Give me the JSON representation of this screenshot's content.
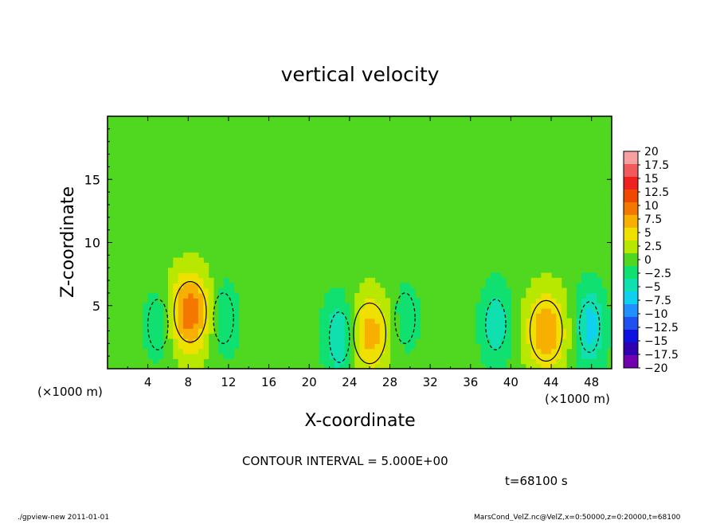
{
  "chart_data": {
    "type": "heatmap",
    "title": "vertical velocity",
    "xlabel": "X-coordinate",
    "ylabel": "Z-coordinate",
    "x_unit_left": "(×1000 m)",
    "x_unit_right": "(×1000 m)",
    "xlim": [
      0,
      50
    ],
    "ylim": [
      0,
      20
    ],
    "x_ticks": [
      "4",
      "8",
      "12",
      "16",
      "20",
      "24",
      "28",
      "32",
      "36",
      "40",
      "44",
      "48"
    ],
    "y_ticks": [
      "5",
      "10",
      "15"
    ],
    "contour_interval_label": "CONTOUR INTERVAL = 5.000E+00",
    "time_label": "t=68100 s",
    "colorbar": {
      "labels": [
        "20",
        "17.5",
        "15",
        "12.5",
        "10",
        "7.5",
        "5",
        "2.5",
        "0",
        "−2.5",
        "−5",
        "−7.5",
        "−10",
        "−12.5",
        "−15",
        "−17.5",
        "−20"
      ],
      "colors": [
        "#f7a0a0",
        "#f05a5a",
        "#ee2020",
        "#f04800",
        "#f47800",
        "#f8b000",
        "#f0e000",
        "#b8e800",
        "#50d820",
        "#10e070",
        "#10e0b0",
        "#10d0f0",
        "#2090ff",
        "#2050f0",
        "#1010e0",
        "#3000b0",
        "#7000b0"
      ]
    },
    "features": [
      {
        "x": 8.2,
        "z": 4.5,
        "w": 10.5,
        "type": "updraft"
      },
      {
        "x": 26.0,
        "z": 2.8,
        "w": 7.5,
        "type": "updraft"
      },
      {
        "x": 43.5,
        "z": 3.0,
        "w": 8.5,
        "type": "updraft"
      },
      {
        "x": 5.0,
        "z": 3.5,
        "w": -3.5,
        "type": "downdraft"
      },
      {
        "x": 11.5,
        "z": 4.0,
        "w": -4.0,
        "type": "downdraft"
      },
      {
        "x": 23.0,
        "z": 2.5,
        "w": -7.0,
        "type": "downdraft"
      },
      {
        "x": 29.5,
        "z": 4.0,
        "w": -3.0,
        "type": "downdraft"
      },
      {
        "x": 38.5,
        "z": 3.5,
        "w": -5.5,
        "type": "downdraft"
      },
      {
        "x": 47.8,
        "z": 3.3,
        "w": -7.5,
        "type": "downdraft"
      }
    ]
  },
  "footer": {
    "left": "./gpview-new   2011-01-01",
    "right": "MarsCond_VelZ.nc@VelZ,x=0:50000,z=0:20000,t=68100"
  }
}
